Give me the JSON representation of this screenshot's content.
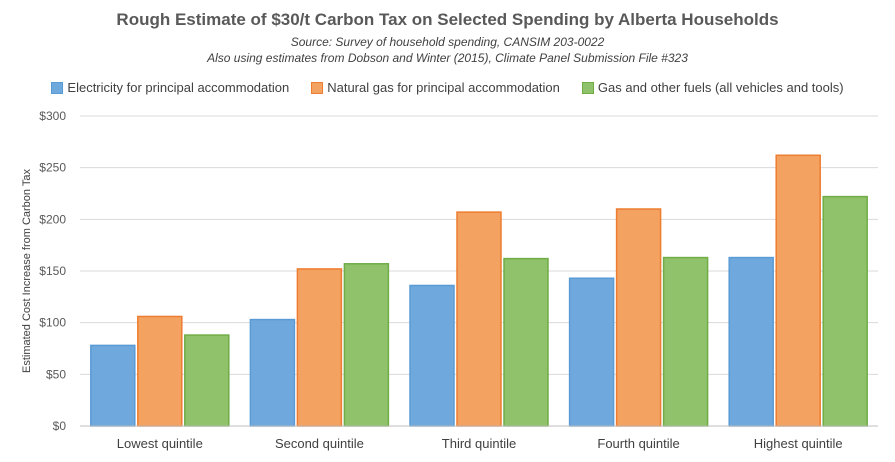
{
  "chart_data": {
    "type": "bar",
    "title": "Rough Estimate of $30/t Carbon Tax on Selected Spending by Alberta Households",
    "subtitle_lines": [
      "Source:  Survey of household spending, CANSIM 203-0022",
      "Also using estimates from Dobson and Winter (2015), Climate Panel Submission File #323"
    ],
    "categories": [
      "Lowest quintile",
      "Second quintile",
      "Third quintile",
      "Fourth quintile",
      "Highest quintile"
    ],
    "series": [
      {
        "name": "Electricity for principal accommodation",
        "values": [
          78,
          103,
          136,
          143,
          163
        ],
        "color": "#6fa8dc",
        "stroke": "#5b9bd5"
      },
      {
        "name": "Natural gas for principal accommodation",
        "values": [
          106,
          152,
          207,
          210,
          262
        ],
        "color": "#f4a261",
        "stroke": "#ed7d31"
      },
      {
        "name": "Gas and other fuels (all vehicles and tools)",
        "values": [
          88,
          157,
          162,
          163,
          222
        ],
        "color": "#8fc26a",
        "stroke": "#70ad47"
      }
    ],
    "ylabel": "Estimated Cost Increase from Carbon Tax",
    "xlabel": "",
    "ylim": [
      0,
      300
    ],
    "yticks": [
      0,
      50,
      100,
      150,
      200,
      250,
      300
    ],
    "ytick_labels": [
      "$0",
      "$50",
      "$100",
      "$150",
      "$200",
      "$250",
      "$300"
    ],
    "grid": true,
    "legend_position": "top"
  }
}
